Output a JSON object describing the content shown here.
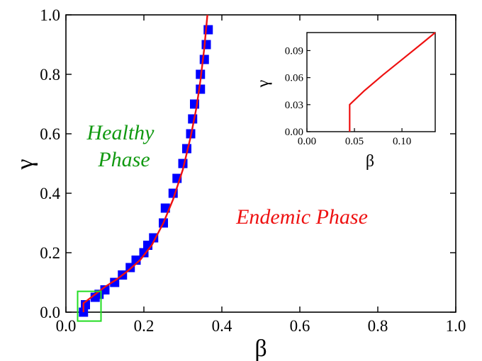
{
  "chart_data": [
    {
      "type": "scatter",
      "xlabel": "β",
      "ylabel": "γ",
      "xlim": [
        0,
        1
      ],
      "ylim": [
        0,
        1
      ],
      "xticks": [
        "0.0",
        "0.2",
        "0.4",
        "0.6",
        "0.8",
        "1.0"
      ],
      "yticks": [
        "0.0",
        "0.2",
        "0.4",
        "0.6",
        "0.8",
        "1.0"
      ],
      "grid": false,
      "annotations": [
        "Healthy",
        "Phase",
        "Endemic Phase"
      ],
      "series": [
        {
          "kind": "markers",
          "color": "#0000ff",
          "points": [
            [
              0.045,
              0.0
            ],
            [
              0.05,
              0.025
            ],
            [
              0.075,
              0.05
            ],
            [
              0.085,
              0.06
            ],
            [
              0.1,
              0.075
            ],
            [
              0.125,
              0.1
            ],
            [
              0.145,
              0.125
            ],
            [
              0.165,
              0.15
            ],
            [
              0.18,
              0.175
            ],
            [
              0.2,
              0.2
            ],
            [
              0.21,
              0.225
            ],
            [
              0.225,
              0.25
            ],
            [
              0.25,
              0.3
            ],
            [
              0.255,
              0.35
            ],
            [
              0.275,
              0.4
            ],
            [
              0.285,
              0.45
            ],
            [
              0.3,
              0.5
            ],
            [
              0.31,
              0.55
            ],
            [
              0.32,
              0.6
            ],
            [
              0.325,
              0.65
            ],
            [
              0.33,
              0.7
            ],
            [
              0.345,
              0.75
            ],
            [
              0.345,
              0.8
            ],
            [
              0.355,
              0.85
            ],
            [
              0.36,
              0.9
            ],
            [
              0.365,
              0.95
            ]
          ]
        },
        {
          "kind": "line",
          "color": "#ee1111",
          "points": [
            [
              0.045,
              0.0
            ],
            [
              0.045,
              0.03
            ],
            [
              0.07,
              0.055
            ],
            [
              0.1,
              0.085
            ],
            [
              0.13,
              0.11
            ],
            [
              0.16,
              0.14
            ],
            [
              0.19,
              0.175
            ],
            [
              0.22,
              0.225
            ],
            [
              0.25,
              0.3
            ],
            [
              0.275,
              0.38
            ],
            [
              0.3,
              0.48
            ],
            [
              0.32,
              0.59
            ],
            [
              0.335,
              0.69
            ],
            [
              0.345,
              0.78
            ],
            [
              0.355,
              0.89
            ],
            [
              0.363,
              1.0
            ]
          ]
        }
      ],
      "highlight_box": {
        "color": "#22dd22",
        "xrange": [
          0.03,
          0.09
        ],
        "yrange": [
          -0.03,
          0.07
        ]
      }
    },
    {
      "type": "line",
      "role": "inset",
      "xlabel": "β",
      "ylabel": "γ",
      "xlim": [
        0,
        0.135
      ],
      "ylim": [
        0,
        0.11
      ],
      "xticks": [
        {
          "value": 0.0,
          "label": "0.00"
        },
        {
          "value": 0.05,
          "label": "0.05"
        },
        {
          "value": 0.1,
          "label": "0.10"
        }
      ],
      "yticks": [
        {
          "value": 0.0,
          "label": "0.00"
        },
        {
          "value": 0.03,
          "label": "0.03"
        },
        {
          "value": 0.06,
          "label": "0.06"
        },
        {
          "value": 0.09,
          "label": "0.09"
        }
      ],
      "series": [
        {
          "color": "#ee1111",
          "points": [
            [
              0.045,
              0.0
            ],
            [
              0.045,
              0.03
            ],
            [
              0.06,
              0.045
            ],
            [
              0.08,
              0.063
            ],
            [
              0.1,
              0.08
            ],
            [
              0.12,
              0.097
            ],
            [
              0.135,
              0.11
            ]
          ]
        }
      ]
    }
  ],
  "colors": {
    "markers": "#0000ff",
    "curve": "#ee1111",
    "healthy_text": "#119911",
    "endemic_text": "#ee1111",
    "zoom_box": "#22dd22"
  }
}
